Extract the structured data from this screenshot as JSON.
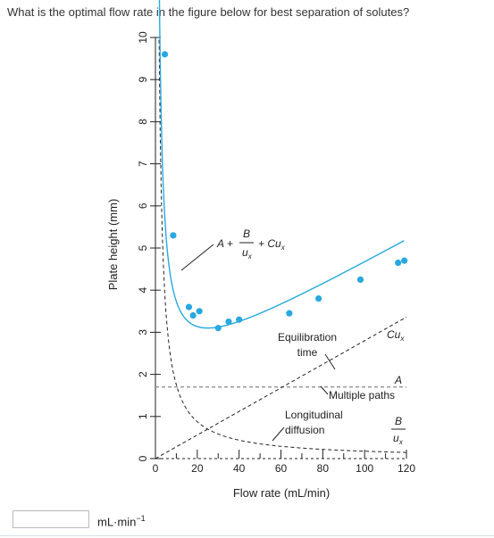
{
  "question": "What is the optimal flow rate in the figure below for best separation of solutes?",
  "answer": {
    "value": "",
    "placeholder": "",
    "unit_base": "mL·min",
    "unit_exp": "−1"
  },
  "colors": {
    "series": "#29a8e0",
    "reference": "#222222",
    "horizontal": "#888888"
  },
  "chart_data": {
    "type": "line",
    "xlabel": "Flow rate (mL/min)",
    "ylabel": "Plate height (mm)",
    "xlim": [
      0,
      120
    ],
    "ylim": [
      0,
      10
    ],
    "x_ticks": [
      0,
      20,
      40,
      60,
      80,
      100,
      120
    ],
    "y_ticks": [
      0,
      1,
      2,
      3,
      4,
      5,
      6,
      7,
      8,
      9,
      10
    ],
    "grid": false,
    "points": [
      [
        4.5,
        9.6
      ],
      [
        8.5,
        5.3
      ],
      [
        16,
        3.6
      ],
      [
        18,
        3.4
      ],
      [
        21,
        3.5
      ],
      [
        30,
        3.1
      ],
      [
        35,
        3.25
      ],
      [
        40,
        3.3
      ],
      [
        64,
        3.45
      ],
      [
        78,
        3.8
      ],
      [
        98,
        4.25
      ],
      [
        116,
        4.65
      ],
      [
        119,
        4.7
      ]
    ],
    "fit_curve": {
      "equation": {
        "A": "A +",
        "B": "B",
        "u": "u",
        "x_sub": "x",
        "C_term": "+ Cu",
        "C_sub": "x"
      },
      "A": 1.7,
      "B": 17.5,
      "C": 0.028,
      "x_range": [
        1.85,
        119
      ]
    },
    "components": [
      {
        "id": "multiple-paths",
        "label": "Multiple paths",
        "symbol": "A",
        "form": "constant",
        "value": 1.7
      },
      {
        "id": "longitudinal-diffusion",
        "label_lines": [
          "Longitudinal",
          "diffusion"
        ],
        "symbol_num": "B",
        "symbol_den": "u",
        "symbol_sub": "x",
        "form": "B/u",
        "value": 17.5
      },
      {
        "id": "equilibration-time",
        "label_lines": [
          "Equilibration",
          "time"
        ],
        "symbol": "Cu",
        "symbol_sub": "x",
        "form": "C*u",
        "value": 0.028
      }
    ]
  }
}
